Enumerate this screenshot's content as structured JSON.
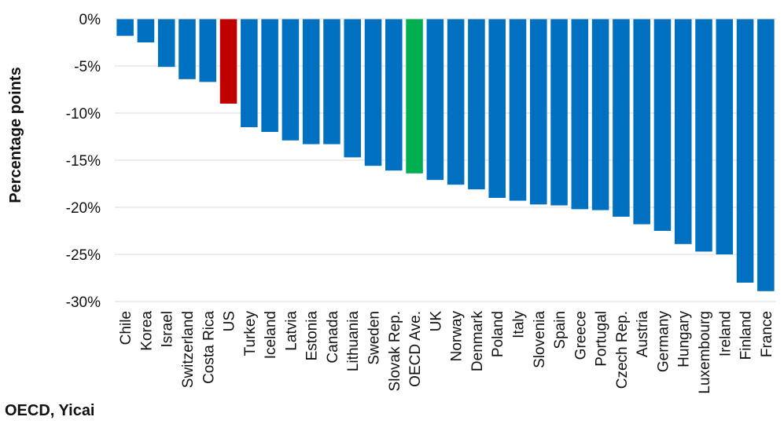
{
  "chart_data": {
    "type": "bar",
    "ylabel": "Percentage points",
    "source": "OECD, Yicai",
    "ylim": [
      -30,
      0
    ],
    "y_ticks": [
      {
        "value": 0,
        "label": "0%"
      },
      {
        "value": -5,
        "label": "-5%"
      },
      {
        "value": -10,
        "label": "-10%"
      },
      {
        "value": -15,
        "label": "-15%"
      },
      {
        "value": -20,
        "label": "-20%"
      },
      {
        "value": -25,
        "label": "-25%"
      },
      {
        "value": -30,
        "label": "-30%"
      }
    ],
    "grid": true,
    "colors": {
      "default": "#0070C0",
      "US": "#C00000",
      "OECD Ave.": "#00B050"
    },
    "categories": [
      "Chile",
      "Korea",
      "Israel",
      "Switzerland",
      "Costa Rica",
      "US",
      "Turkey",
      "Iceland",
      "Latvia",
      "Estonia",
      "Canada",
      "Lithuania",
      "Sweden",
      "Slovak Rep.",
      "OECD Ave.",
      "UK",
      "Norway",
      "Denmark",
      "Poland",
      "Italy",
      "Slovenia",
      "Spain",
      "Greece",
      "Portugal",
      "Czech Rep.",
      "Austria",
      "Germany",
      "Hungary",
      "Luxembourg",
      "Ireland",
      "Finland",
      "France"
    ],
    "values": [
      -1.8,
      -2.5,
      -5.1,
      -6.4,
      -6.7,
      -9.0,
      -11.5,
      -12.0,
      -12.9,
      -13.3,
      -13.3,
      -14.7,
      -15.6,
      -16.1,
      -16.4,
      -17.1,
      -17.6,
      -18.1,
      -19.0,
      -19.3,
      -19.7,
      -19.8,
      -20.2,
      -20.3,
      -21.0,
      -21.8,
      -22.5,
      -23.9,
      -24.7,
      -25.0,
      -28.0,
      -28.9
    ]
  }
}
